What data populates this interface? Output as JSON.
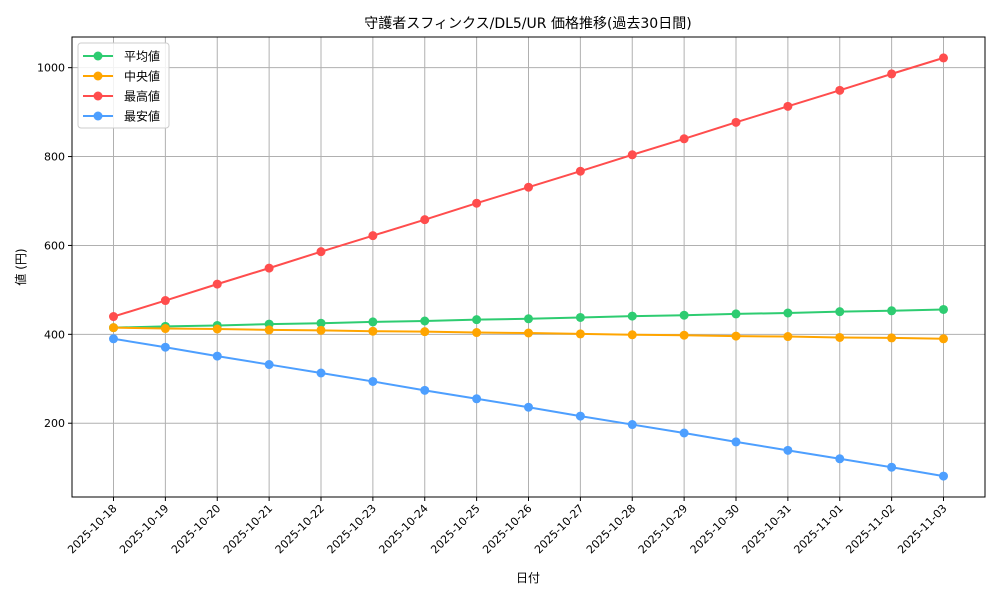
{
  "chart_data": {
    "type": "line",
    "title": "守護者スフィンクス/DL5/UR 価格推移(過去30日間)",
    "xlabel": "日付",
    "ylabel": "値 (円)",
    "categories": [
      "2025-10-18",
      "2025-10-19",
      "2025-10-20",
      "2025-10-21",
      "2025-10-22",
      "2025-10-23",
      "2025-10-24",
      "2025-10-25",
      "2025-10-26",
      "2025-10-27",
      "2025-10-28",
      "2025-10-29",
      "2025-10-30",
      "2025-10-31",
      "2025-11-01",
      "2025-11-02",
      "2025-11-03"
    ],
    "ylim": [
      34,
      1069
    ],
    "yticks": [
      200,
      400,
      600,
      800,
      1000
    ],
    "grid": true,
    "legend_position": "upper-left",
    "series": [
      {
        "name": "平均値",
        "color": "#2ecc71",
        "values": [
          415,
          418,
          420,
          423,
          425,
          428,
          430,
          433,
          435,
          438,
          441,
          443,
          446,
          448,
          451,
          453,
          456
        ]
      },
      {
        "name": "中央値",
        "color": "#ffa500",
        "values": [
          415,
          413,
          412,
          410,
          409,
          407,
          406,
          404,
          403,
          401,
          399,
          398,
          396,
          395,
          393,
          392,
          390
        ]
      },
      {
        "name": "最高値",
        "color": "#ff4d4d",
        "values": [
          440,
          476,
          513,
          549,
          586,
          622,
          658,
          695,
          731,
          767,
          804,
          840,
          877,
          913,
          949,
          986,
          1022
        ]
      },
      {
        "name": "最安値",
        "color": "#4d9fff",
        "values": [
          390,
          371,
          351,
          332,
          313,
          294,
          274,
          255,
          236,
          216,
          197,
          178,
          158,
          139,
          120,
          101,
          81
        ]
      }
    ]
  }
}
